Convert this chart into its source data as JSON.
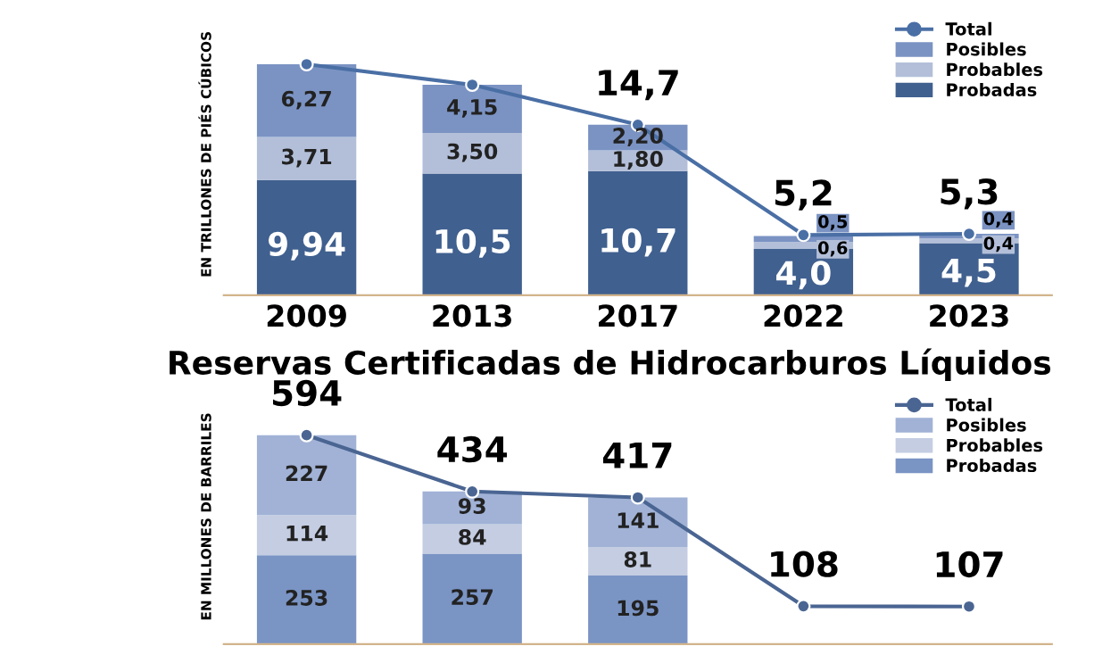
{
  "chart_data": [
    {
      "type": "bar",
      "stacked": true,
      "ylabel": "EN TRILLONES DE PIÉS CÚBICOS",
      "categories": [
        "2009",
        "2013",
        "2017",
        "2022",
        "2023"
      ],
      "legend": "top right",
      "tick_labels": "x",
      "grid": false,
      "series": [
        {
          "name": "Probadas",
          "color": "#40608f",
          "values": [
            9.94,
            10.5,
            10.7,
            4.0,
            4.5
          ],
          "value_labels": [
            "9,94",
            "10,5",
            "10,7",
            "4,0",
            "4,5"
          ]
        },
        {
          "name": "Probables",
          "color": "#b3bfd9",
          "values": [
            3.71,
            3.5,
            1.8,
            0.6,
            0.4
          ],
          "value_labels": [
            "3,71",
            "3,50",
            "1,80",
            "0,6",
            "0,4"
          ]
        },
        {
          "name": "Posibles",
          "color": "#7b93c3",
          "values": [
            6.27,
            4.15,
            2.2,
            0.5,
            0.4
          ],
          "value_labels": [
            "6,27",
            "4,15",
            "2,20",
            "0,5",
            "0,4"
          ]
        },
        {
          "name": "Total",
          "type": "line",
          "marker": "circle",
          "color": "#4a6fa5",
          "values": [
            19.92,
            18.15,
            14.7,
            5.2,
            5.3
          ],
          "value_labels": [
            null,
            null,
            "14,7",
            "5,2",
            "5,3"
          ]
        }
      ]
    },
    {
      "type": "bar",
      "stacked": true,
      "title": "Reservas Certificadas de Hidrocarburos Líquidos",
      "ylabel": "EN MILLONES DE BARRILES",
      "categories": [
        null,
        null,
        null,
        null,
        null
      ],
      "legend": "top right",
      "tick_labels": false,
      "grid": false,
      "series": [
        {
          "name": "Probadas",
          "color": "#7a94c4",
          "values": [
            253,
            257,
            195,
            null,
            null
          ],
          "value_labels": [
            "253",
            "257",
            "195",
            null,
            null
          ]
        },
        {
          "name": "Probables",
          "color": "#c4cde2",
          "values": [
            114,
            84,
            81,
            null,
            null
          ],
          "value_labels": [
            "114",
            "84",
            "81",
            null,
            null
          ]
        },
        {
          "name": "Posibles",
          "color": "#a1b2d6",
          "values": [
            227,
            93,
            141,
            null,
            null
          ],
          "value_labels": [
            "227",
            "93",
            "141",
            null,
            null
          ]
        },
        {
          "name": "Total",
          "type": "line",
          "marker": "circle",
          "color": "#4a6592",
          "values": [
            594,
            434,
            417,
            108,
            107
          ],
          "value_labels": [
            "594",
            "434",
            "417",
            "108",
            "107"
          ]
        }
      ]
    }
  ]
}
